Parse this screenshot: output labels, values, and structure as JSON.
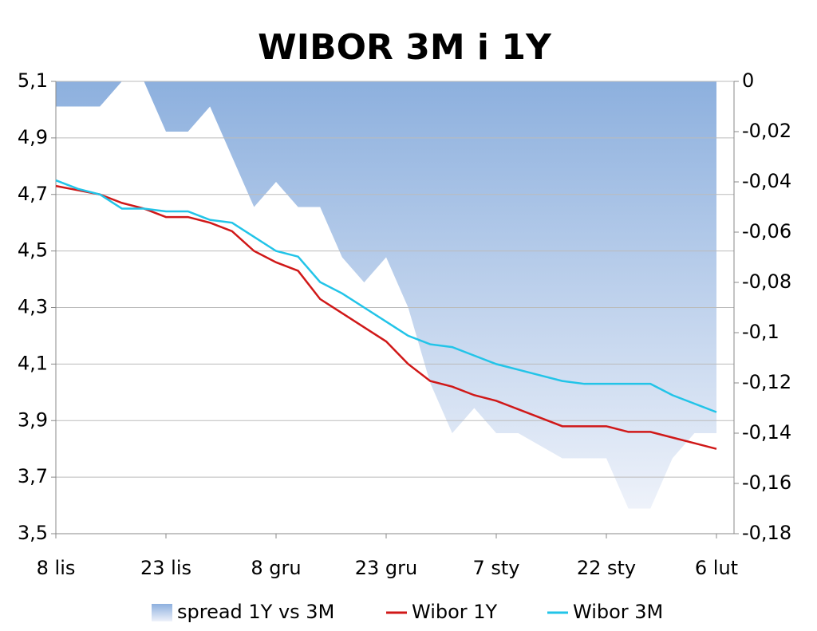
{
  "chart_data": {
    "type": "line",
    "title": "WIBOR 3M i 1Y",
    "categories": [
      "8 lis",
      null,
      null,
      null,
      null,
      "23 lis",
      null,
      null,
      null,
      null,
      "8 gru",
      null,
      null,
      null,
      null,
      "23 gru",
      null,
      null,
      null,
      null,
      "7 sty",
      null,
      null,
      null,
      null,
      "22 sty",
      null,
      null,
      null,
      null,
      "6 lut"
    ],
    "series": [
      {
        "name": "spread 1Y vs 3M",
        "color": "#8db0de",
        "axis": "y2",
        "type": "area",
        "values": [
          -0.01,
          -0.01,
          -0.01,
          0,
          0,
          -0.02,
          -0.02,
          -0.01,
          -0.03,
          -0.05,
          -0.04,
          -0.05,
          -0.05,
          -0.07,
          -0.08,
          -0.07,
          -0.09,
          -0.12,
          -0.14,
          -0.13,
          -0.14,
          -0.14,
          -0.145,
          -0.15,
          -0.15,
          -0.15,
          -0.17,
          -0.17,
          -0.15,
          -0.14,
          -0.14
        ]
      },
      {
        "name": "Wibor 1Y",
        "color": "#d01818",
        "values": [
          4.73,
          4.715,
          4.7,
          4.67,
          4.65,
          4.62,
          4.62,
          4.6,
          4.57,
          4.5,
          4.46,
          4.43,
          4.33,
          4.28,
          4.23,
          4.18,
          4.1,
          4.04,
          4.02,
          3.99,
          3.97,
          3.94,
          3.91,
          3.88,
          3.88,
          3.88,
          3.86,
          3.86,
          3.84,
          3.82,
          3.8
        ]
      },
      {
        "name": "Wibor 3M",
        "color": "#22c4e8",
        "values": [
          4.75,
          4.72,
          4.7,
          4.65,
          4.65,
          4.64,
          4.64,
          4.61,
          4.6,
          4.55,
          4.5,
          4.48,
          4.39,
          4.35,
          4.3,
          4.25,
          4.2,
          4.17,
          4.16,
          4.13,
          4.1,
          4.08,
          4.06,
          4.04,
          4.03,
          4.03,
          4.03,
          4.03,
          3.99,
          3.96,
          3.93
        ]
      }
    ],
    "ylim": [
      3.5,
      5.1
    ],
    "yticks": [
      {
        "value": 3.5,
        "label": "3,5"
      },
      {
        "value": 3.7,
        "label": "3,7"
      },
      {
        "value": 3.9,
        "label": "3,9"
      },
      {
        "value": 4.1,
        "label": "4,1"
      },
      {
        "value": 4.3,
        "label": "4,3"
      },
      {
        "value": 4.5,
        "label": "4,5"
      },
      {
        "value": 4.7,
        "label": "4,7"
      },
      {
        "value": 4.9,
        "label": "4,9"
      },
      {
        "value": 5.1,
        "label": "5,1"
      }
    ],
    "y2lim": [
      -0.18,
      0
    ],
    "y2ticks": [
      {
        "value": -0.18,
        "label": "-0,18"
      },
      {
        "value": -0.16,
        "label": "-0,16"
      },
      {
        "value": -0.14,
        "label": "-0,14"
      },
      {
        "value": -0.12,
        "label": "-0,12"
      },
      {
        "value": -0.1,
        "label": "-0,1"
      },
      {
        "value": -0.08,
        "label": "-0,08"
      },
      {
        "value": -0.06,
        "label": "-0,06"
      },
      {
        "value": -0.04,
        "label": "-0,04"
      },
      {
        "value": -0.02,
        "label": "-0,02"
      },
      0
    ],
    "grid": true,
    "legend": "bottom"
  }
}
